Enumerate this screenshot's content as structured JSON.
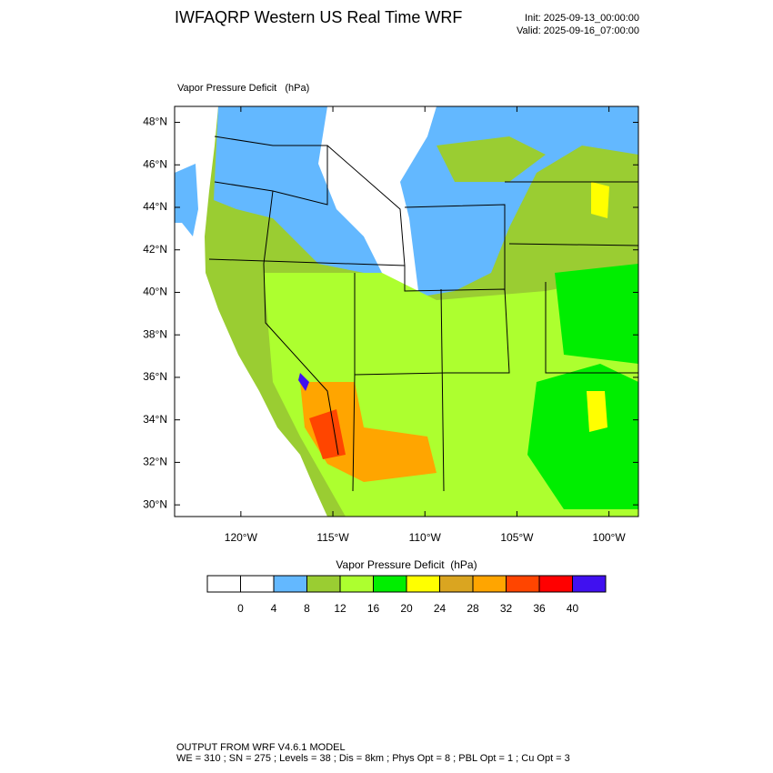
{
  "header": {
    "title": "IWFAQRP Western US Real Time WRF",
    "init": "Init: 2025-09-13_00:00:00",
    "valid": "Valid: 2025-09-16_07:00:00"
  },
  "map": {
    "label": "Vapor Pressure Deficit   (hPa)",
    "xlim": [
      -123.6,
      -98.4
    ],
    "ylim": [
      29.45,
      48.75
    ],
    "xticks": [
      {
        "value": -120,
        "label": "120°W"
      },
      {
        "value": -115,
        "label": "115°W"
      },
      {
        "value": -110,
        "label": "110°W"
      },
      {
        "value": -105,
        "label": "105°W"
      },
      {
        "value": -100,
        "label": "100°W"
      }
    ],
    "yticks": [
      {
        "value": 48,
        "label": "48°N"
      },
      {
        "value": 46,
        "label": "46°N"
      },
      {
        "value": 44,
        "label": "44°N"
      },
      {
        "value": 42,
        "label": "42°N"
      },
      {
        "value": 40,
        "label": "40°N"
      },
      {
        "value": 38,
        "label": "38°N"
      },
      {
        "value": 36,
        "label": "36°N"
      },
      {
        "value": 34,
        "label": "34°N"
      },
      {
        "value": 32,
        "label": "32°N"
      },
      {
        "value": 30,
        "label": "30°N"
      }
    ]
  },
  "colorbar": {
    "title": "Vapor Pressure Deficit  (hPa)",
    "colors": [
      "#ffffff",
      "#ffffff",
      "#63b8ff",
      "#9acd32",
      "#adff2f",
      "#00ee00",
      "#ffff00",
      "#daa520",
      "#ffa500",
      "#ff4500",
      "#ff0000",
      "#4010f0"
    ],
    "levels": [
      0,
      4,
      8,
      12,
      16,
      20,
      24,
      28,
      32,
      36,
      40
    ]
  },
  "footer": {
    "line1": "OUTPUT FROM WRF V4.6.1 MODEL",
    "line2": "WE = 310 ; SN = 275 ; Levels = 38 ; Dis = 8km ; Phys Opt = 8 ; PBL Opt = 1 ; Cu Opt = 3"
  }
}
